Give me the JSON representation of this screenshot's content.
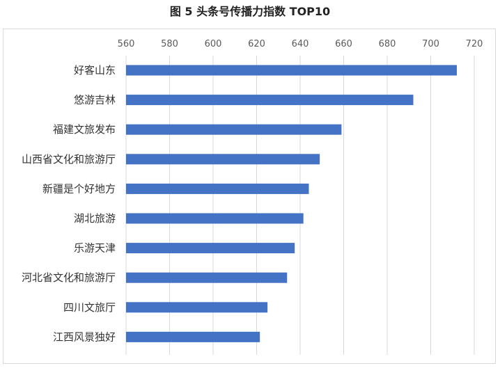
{
  "chart_data": {
    "type": "bar",
    "orientation": "horizontal",
    "title": "图 5  头条号传播力指数 TOP10",
    "xlabel": "",
    "ylabel": "",
    "xlim": [
      560,
      720
    ],
    "xticks": [
      560,
      580,
      600,
      620,
      640,
      660,
      680,
      700,
      720
    ],
    "grid": true,
    "bar_color": "#4472C4",
    "categories": [
      "好客山东",
      "悠游吉林",
      "福建文旅发布",
      "山西省文化和旅游厅",
      "新疆是个好地方",
      "湖北旅游",
      "乐游天津",
      "河北省文化和旅游厅",
      "四川文旅厅",
      "江西风景独好"
    ],
    "values": [
      712,
      692,
      659,
      649,
      644,
      641.5,
      637.5,
      634,
      625,
      621.5
    ]
  }
}
